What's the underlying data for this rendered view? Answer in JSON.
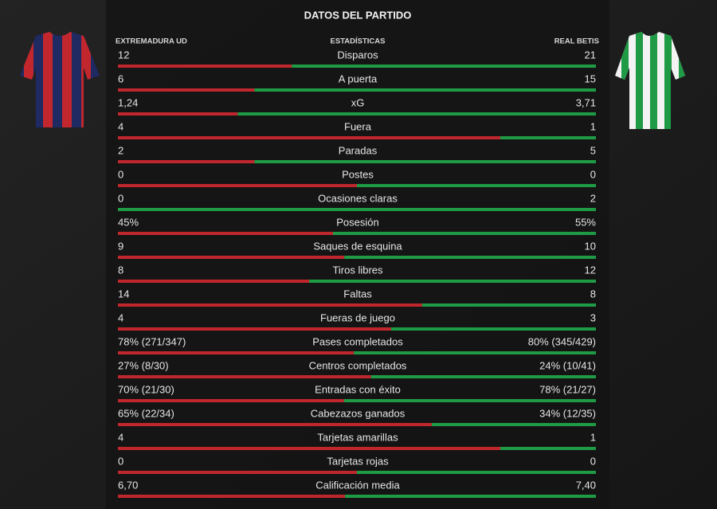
{
  "header": {
    "title": "DATOS DEL PARTIDO"
  },
  "columns": {
    "home": "EXTREMADURA UD",
    "stat": "ESTADÍSTICAS",
    "away": "REAL BETIS"
  },
  "colors": {
    "home": "#c0272d",
    "away": "#1f9a45"
  },
  "rows": [
    {
      "label": "Disparos",
      "home": 12,
      "away": 21
    },
    {
      "label": "A puerta",
      "home": 6,
      "away": 15
    },
    {
      "label": "xG",
      "home": {
        "value": 1.24,
        "label": "1,24"
      },
      "away": {
        "value": 3.71,
        "label": "3,71"
      }
    },
    {
      "label": "Fuera",
      "home": 4,
      "away": 1
    },
    {
      "label": "Paradas",
      "home": 2,
      "away": 5
    },
    {
      "label": "Postes",
      "home": 0,
      "away": 0
    },
    {
      "label": "Ocasiones claras",
      "home": 0,
      "away": 2
    },
    {
      "label": "Posesión",
      "home": {
        "value": 45,
        "label": "45%"
      },
      "away": {
        "value": 55,
        "label": "55%"
      }
    },
    {
      "label": "Saques de esquina",
      "home": 9,
      "away": 10
    },
    {
      "label": "Tiros libres",
      "home": 8,
      "away": 12
    },
    {
      "label": "Faltas",
      "home": 14,
      "away": 8
    },
    {
      "label": "Fueras de juego",
      "home": 4,
      "away": 3
    },
    {
      "label": "Pases completados",
      "home": {
        "value": 78,
        "label": "78% (271/347)"
      },
      "away": {
        "value": 80,
        "label": "80% (345/429)"
      }
    },
    {
      "label": "Centros completados",
      "home": {
        "value": 27,
        "label": "27% (8/30)"
      },
      "away": {
        "value": 24,
        "label": "24% (10/41)"
      }
    },
    {
      "label": "Entradas con éxito",
      "home": {
        "value": 70,
        "label": "70% (21/30)"
      },
      "away": {
        "value": 78,
        "label": "78% (21/27)"
      }
    },
    {
      "label": "Cabezazos ganados",
      "home": {
        "value": 65,
        "label": "65% (22/34)"
      },
      "away": {
        "value": 34,
        "label": "34% (12/35)"
      }
    },
    {
      "label": "Tarjetas amarillas",
      "home": 4,
      "away": 1
    },
    {
      "label": "Tarjetas rojas",
      "home": 0,
      "away": 0
    },
    {
      "label": "Calificación media",
      "home": {
        "value": 6.7,
        "label": "6,70"
      },
      "away": {
        "value": 7.4,
        "label": "7,40"
      }
    }
  ]
}
